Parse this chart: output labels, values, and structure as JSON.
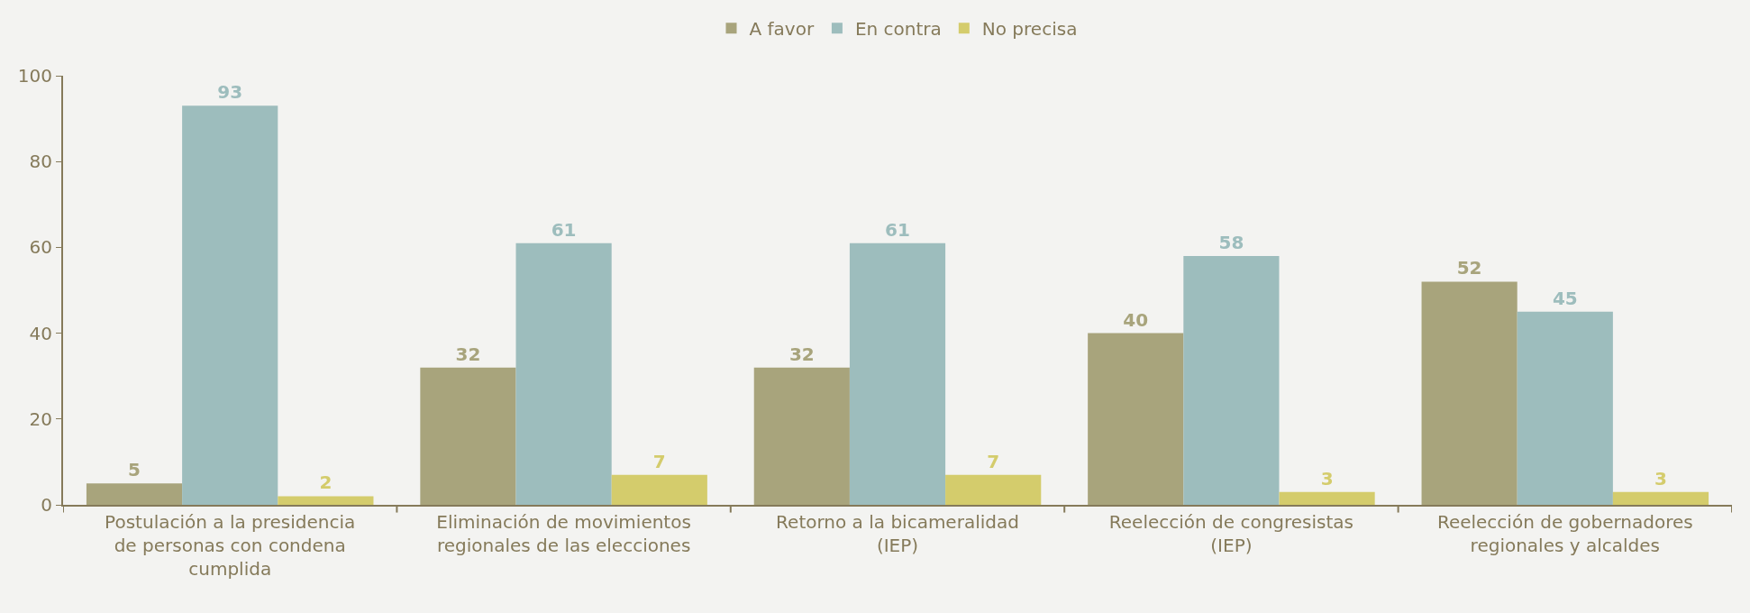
{
  "chart_data": {
    "type": "bar",
    "categories": [
      "Postulación a la presidencia de personas con condena cumplida",
      "Eliminación de movimientos regionales de las elecciones",
      "Retorno a la bicameralidad (IEP)",
      "Reelección de congresistas (IEP)",
      "Reelección de gobernadores regionales y alcaldes"
    ],
    "series": [
      {
        "name": "A favor",
        "color": "#a8a47c",
        "values": [
          5,
          32,
          32,
          40,
          52
        ]
      },
      {
        "name": "En contra",
        "color": "#9dbdbd",
        "values": [
          93,
          61,
          61,
          58,
          45
        ]
      },
      {
        "name": "No precisa",
        "color": "#d4cc6c",
        "values": [
          2,
          7,
          7,
          3,
          3
        ]
      }
    ],
    "ylim": [
      0,
      100
    ],
    "yticks": [
      0,
      20,
      40,
      60,
      80,
      100
    ],
    "grid": false,
    "legend": "top",
    "data_labels": true
  }
}
